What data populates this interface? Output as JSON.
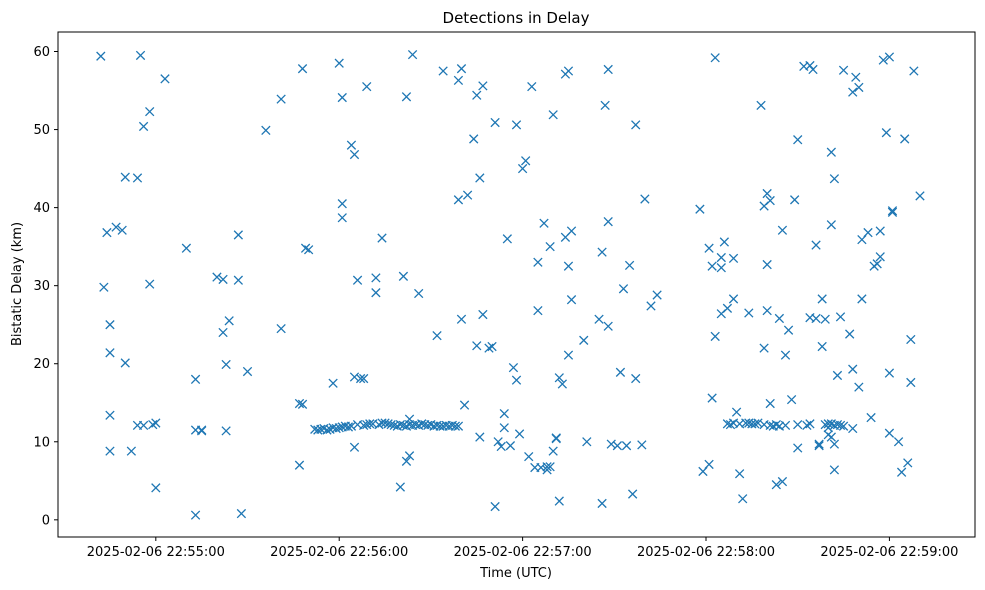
{
  "chart_data": {
    "type": "scatter",
    "title": "Detections in Delay",
    "xlabel": "Time (UTC)",
    "ylabel": "Bistatic Delay (km)",
    "xlim": [
      "2025-02-06 22:54:28",
      "2025-02-06 22:59:28"
    ],
    "ylim": [
      -2.2,
      62.5
    ],
    "x_ticks": [
      "2025-02-06 22:55:00",
      "2025-02-06 22:56:00",
      "2025-02-06 22:57:00",
      "2025-02-06 22:58:00",
      "2025-02-06 22:59:00"
    ],
    "y_ticks": [
      0,
      10,
      20,
      30,
      40,
      50,
      60
    ],
    "marker": "x",
    "color": "#1f77b4",
    "grid": false,
    "points": [
      [
        "2025-02-06 22:54:42",
        59.4
      ],
      [
        "2025-02-06 22:54:43",
        29.8
      ],
      [
        "2025-02-06 22:54:44",
        36.8
      ],
      [
        "2025-02-06 22:54:45",
        25.0
      ],
      [
        "2025-02-06 22:54:45",
        21.4
      ],
      [
        "2025-02-06 22:54:45",
        13.4
      ],
      [
        "2025-02-06 22:54:45",
        8.8
      ],
      [
        "2025-02-06 22:54:47",
        37.5
      ],
      [
        "2025-02-06 22:54:49",
        37.1
      ],
      [
        "2025-02-06 22:54:50",
        20.1
      ],
      [
        "2025-02-06 22:54:50",
        43.9
      ],
      [
        "2025-02-06 22:54:52",
        8.8
      ],
      [
        "2025-02-06 22:54:54",
        43.8
      ],
      [
        "2025-02-06 22:54:54",
        12.1
      ],
      [
        "2025-02-06 22:54:55",
        59.5
      ],
      [
        "2025-02-06 22:54:56",
        50.4
      ],
      [
        "2025-02-06 22:54:56",
        12.1
      ],
      [
        "2025-02-06 22:54:58",
        52.3
      ],
      [
        "2025-02-06 22:54:58",
        30.2
      ],
      [
        "2025-02-06 22:54:59",
        12.2
      ],
      [
        "2025-02-06 22:55:00",
        12.4
      ],
      [
        "2025-02-06 22:55:00",
        4.1
      ],
      [
        "2025-02-06 22:55:03",
        56.5
      ],
      [
        "2025-02-06 22:55:10",
        34.8
      ],
      [
        "2025-02-06 22:55:13",
        11.5
      ],
      [
        "2025-02-06 22:55:13",
        18.0
      ],
      [
        "2025-02-06 22:55:13",
        0.6
      ],
      [
        "2025-02-06 22:55:15",
        11.4
      ],
      [
        "2025-02-06 22:55:15",
        11.5
      ],
      [
        "2025-02-06 22:55:20",
        31.1
      ],
      [
        "2025-02-06 22:55:22",
        24.0
      ],
      [
        "2025-02-06 22:55:22",
        30.8
      ],
      [
        "2025-02-06 22:55:23",
        19.9
      ],
      [
        "2025-02-06 22:55:23",
        11.4
      ],
      [
        "2025-02-06 22:55:24",
        25.5
      ],
      [
        "2025-02-06 22:55:27",
        30.7
      ],
      [
        "2025-02-06 22:55:27",
        36.5
      ],
      [
        "2025-02-06 22:55:28",
        0.8
      ],
      [
        "2025-02-06 22:55:30",
        19.0
      ],
      [
        "2025-02-06 22:55:36",
        49.9
      ],
      [
        "2025-02-06 22:55:41",
        24.5
      ],
      [
        "2025-02-06 22:55:41",
        53.9
      ],
      [
        "2025-02-06 22:55:47",
        14.9
      ],
      [
        "2025-02-06 22:55:47",
        7.0
      ],
      [
        "2025-02-06 22:55:48",
        14.8
      ],
      [
        "2025-02-06 22:55:48",
        57.8
      ],
      [
        "2025-02-06 22:55:49",
        34.8
      ],
      [
        "2025-02-06 22:55:50",
        34.6
      ],
      [
        "2025-02-06 22:55:52",
        11.6
      ],
      [
        "2025-02-06 22:55:53",
        11.5
      ],
      [
        "2025-02-06 22:55:54",
        11.6
      ],
      [
        "2025-02-06 22:55:55",
        11.7
      ],
      [
        "2025-02-06 22:55:56",
        11.5
      ],
      [
        "2025-02-06 22:55:57",
        11.6
      ],
      [
        "2025-02-06 22:55:58",
        17.5
      ],
      [
        "2025-02-06 22:55:58",
        11.8
      ],
      [
        "2025-02-06 22:55:59",
        11.7
      ],
      [
        "2025-02-06 22:56:00",
        58.5
      ],
      [
        "2025-02-06 22:56:00",
        11.8
      ],
      [
        "2025-02-06 22:56:01",
        54.1
      ],
      [
        "2025-02-06 22:56:01",
        40.5
      ],
      [
        "2025-02-06 22:56:01",
        38.7
      ],
      [
        "2025-02-06 22:56:01",
        11.9
      ],
      [
        "2025-02-06 22:56:02",
        12.0
      ],
      [
        "2025-02-06 22:56:03",
        11.9
      ],
      [
        "2025-02-06 22:56:04",
        48.0
      ],
      [
        "2025-02-06 22:56:04",
        12.0
      ],
      [
        "2025-02-06 22:56:05",
        46.8
      ],
      [
        "2025-02-06 22:56:05",
        18.3
      ],
      [
        "2025-02-06 22:56:05",
        9.3
      ],
      [
        "2025-02-06 22:56:06",
        30.7
      ],
      [
        "2025-02-06 22:56:06",
        12.2
      ],
      [
        "2025-02-06 22:56:07",
        18.1
      ],
      [
        "2025-02-06 22:56:08",
        18.1
      ],
      [
        "2025-02-06 22:56:08",
        12.1
      ],
      [
        "2025-02-06 22:56:09",
        55.5
      ],
      [
        "2025-02-06 22:56:09",
        12.2
      ],
      [
        "2025-02-06 22:56:10",
        12.3
      ],
      [
        "2025-02-06 22:56:11",
        12.3
      ],
      [
        "2025-02-06 22:56:12",
        31.0
      ],
      [
        "2025-02-06 22:56:12",
        29.1
      ],
      [
        "2025-02-06 22:56:13",
        12.2
      ],
      [
        "2025-02-06 22:56:14",
        36.1
      ],
      [
        "2025-02-06 22:56:14",
        12.4
      ],
      [
        "2025-02-06 22:56:15",
        12.4
      ],
      [
        "2025-02-06 22:56:16",
        12.3
      ],
      [
        "2025-02-06 22:56:17",
        12.2
      ],
      [
        "2025-02-06 22:56:18",
        12.1
      ],
      [
        "2025-02-06 22:56:19",
        12.0
      ],
      [
        "2025-02-06 22:56:20",
        4.2
      ],
      [
        "2025-02-06 22:56:20",
        12.2
      ],
      [
        "2025-02-06 22:56:21",
        31.2
      ],
      [
        "2025-02-06 22:56:21",
        12.1
      ],
      [
        "2025-02-06 22:56:22",
        54.2
      ],
      [
        "2025-02-06 22:56:22",
        7.5
      ],
      [
        "2025-02-06 22:56:22",
        12.0
      ],
      [
        "2025-02-06 22:56:23",
        8.2
      ],
      [
        "2025-02-06 22:56:23",
        12.9
      ],
      [
        "2025-02-06 22:56:23",
        12.2
      ],
      [
        "2025-02-06 22:56:24",
        12.1
      ],
      [
        "2025-02-06 22:56:24",
        59.6
      ],
      [
        "2025-02-06 22:56:25",
        12.2
      ],
      [
        "2025-02-06 22:56:26",
        29.0
      ],
      [
        "2025-02-06 22:56:26",
        12.1
      ],
      [
        "2025-02-06 22:56:27",
        12.3
      ],
      [
        "2025-02-06 22:56:28",
        12.2
      ],
      [
        "2025-02-06 22:56:29",
        12.1
      ],
      [
        "2025-02-06 22:56:30",
        12.2
      ],
      [
        "2025-02-06 22:56:31",
        12.0
      ],
      [
        "2025-02-06 22:56:32",
        23.6
      ],
      [
        "2025-02-06 22:56:32",
        12.1
      ],
      [
        "2025-02-06 22:56:33",
        12.0
      ],
      [
        "2025-02-06 22:56:34",
        57.5
      ],
      [
        "2025-02-06 22:56:34",
        12.0
      ],
      [
        "2025-02-06 22:56:35",
        12.1
      ],
      [
        "2025-02-06 22:56:36",
        12.0
      ],
      [
        "2025-02-06 22:56:37",
        12.1
      ],
      [
        "2025-02-06 22:56:38",
        12.0
      ],
      [
        "2025-02-06 22:56:39",
        56.3
      ],
      [
        "2025-02-06 22:56:39",
        41.0
      ],
      [
        "2025-02-06 22:56:39",
        12.0
      ],
      [
        "2025-02-06 22:56:40",
        57.8
      ],
      [
        "2025-02-06 22:56:40",
        25.7
      ],
      [
        "2025-02-06 22:56:41",
        14.7
      ],
      [
        "2025-02-06 22:56:42",
        41.6
      ],
      [
        "2025-02-06 22:56:44",
        48.8
      ],
      [
        "2025-02-06 22:56:45",
        54.4
      ],
      [
        "2025-02-06 22:56:45",
        22.3
      ],
      [
        "2025-02-06 22:56:46",
        43.8
      ],
      [
        "2025-02-06 22:56:46",
        10.6
      ],
      [
        "2025-02-06 22:56:47",
        55.6
      ],
      [
        "2025-02-06 22:56:47",
        26.3
      ],
      [
        "2025-02-06 22:56:49",
        22.0
      ],
      [
        "2025-02-06 22:56:50",
        22.2
      ],
      [
        "2025-02-06 22:56:51",
        50.9
      ],
      [
        "2025-02-06 22:56:51",
        1.7
      ],
      [
        "2025-02-06 22:56:52",
        10.0
      ],
      [
        "2025-02-06 22:56:53",
        9.4
      ],
      [
        "2025-02-06 22:56:54",
        11.8
      ],
      [
        "2025-02-06 22:56:54",
        13.6
      ],
      [
        "2025-02-06 22:56:55",
        36.0
      ],
      [
        "2025-02-06 22:56:56",
        9.5
      ],
      [
        "2025-02-06 22:56:57",
        19.5
      ],
      [
        "2025-02-06 22:56:58",
        17.9
      ],
      [
        "2025-02-06 22:56:58",
        50.6
      ],
      [
        "2025-02-06 22:56:59",
        11.0
      ],
      [
        "2025-02-06 22:57:00",
        45.0
      ],
      [
        "2025-02-06 22:57:01",
        46.0
      ],
      [
        "2025-02-06 22:57:02",
        8.1
      ],
      [
        "2025-02-06 22:57:03",
        55.5
      ],
      [
        "2025-02-06 22:57:04",
        6.7
      ],
      [
        "2025-02-06 22:57:05",
        33.0
      ],
      [
        "2025-02-06 22:57:05",
        26.8
      ],
      [
        "2025-02-06 22:57:06",
        6.7
      ],
      [
        "2025-02-06 22:57:07",
        38.0
      ],
      [
        "2025-02-06 22:57:08",
        6.8
      ],
      [
        "2025-02-06 22:57:08",
        6.4
      ],
      [
        "2025-02-06 22:57:09",
        6.8
      ],
      [
        "2025-02-06 22:57:09",
        35.0
      ],
      [
        "2025-02-06 22:57:10",
        8.8
      ],
      [
        "2025-02-06 22:57:10",
        51.9
      ],
      [
        "2025-02-06 22:57:11",
        10.5
      ],
      [
        "2025-02-06 22:57:11",
        10.4
      ],
      [
        "2025-02-06 22:57:12",
        18.2
      ],
      [
        "2025-02-06 22:57:12",
        2.4
      ],
      [
        "2025-02-06 22:57:13",
        17.4
      ],
      [
        "2025-02-06 22:57:14",
        36.2
      ],
      [
        "2025-02-06 22:57:14",
        57.1
      ],
      [
        "2025-02-06 22:57:15",
        21.1
      ],
      [
        "2025-02-06 22:57:15",
        57.5
      ],
      [
        "2025-02-06 22:57:15",
        32.5
      ],
      [
        "2025-02-06 22:57:16",
        28.2
      ],
      [
        "2025-02-06 22:57:16",
        37.0
      ],
      [
        "2025-02-06 22:57:20",
        23.0
      ],
      [
        "2025-02-06 22:57:21",
        10.0
      ],
      [
        "2025-02-06 22:57:25",
        25.7
      ],
      [
        "2025-02-06 22:57:26",
        34.3
      ],
      [
        "2025-02-06 22:57:26",
        2.1
      ],
      [
        "2025-02-06 22:57:27",
        53.1
      ],
      [
        "2025-02-06 22:57:28",
        57.7
      ],
      [
        "2025-02-06 22:57:28",
        38.2
      ],
      [
        "2025-02-06 22:57:28",
        24.8
      ],
      [
        "2025-02-06 22:57:29",
        9.7
      ],
      [
        "2025-02-06 22:57:31",
        9.5
      ],
      [
        "2025-02-06 22:57:32",
        18.9
      ],
      [
        "2025-02-06 22:57:33",
        29.6
      ],
      [
        "2025-02-06 22:57:34",
        9.5
      ],
      [
        "2025-02-06 22:57:35",
        32.6
      ],
      [
        "2025-02-06 22:57:36",
        3.3
      ],
      [
        "2025-02-06 22:57:37",
        50.6
      ],
      [
        "2025-02-06 22:57:37",
        18.1
      ],
      [
        "2025-02-06 22:57:39",
        9.6
      ],
      [
        "2025-02-06 22:57:40",
        41.1
      ],
      [
        "2025-02-06 22:57:42",
        27.4
      ],
      [
        "2025-02-06 22:57:44",
        28.8
      ],
      [
        "2025-02-06 22:57:58",
        39.8
      ],
      [
        "2025-02-06 22:57:59",
        6.2
      ],
      [
        "2025-02-06 22:58:01",
        7.1
      ],
      [
        "2025-02-06 22:58:01",
        34.8
      ],
      [
        "2025-02-06 22:58:02",
        32.5
      ],
      [
        "2025-02-06 22:58:02",
        15.6
      ],
      [
        "2025-02-06 22:58:03",
        23.5
      ],
      [
        "2025-02-06 22:58:03",
        59.2
      ],
      [
        "2025-02-06 22:58:05",
        32.3
      ],
      [
        "2025-02-06 22:58:05",
        33.6
      ],
      [
        "2025-02-06 22:58:05",
        26.4
      ],
      [
        "2025-02-06 22:58:06",
        35.6
      ],
      [
        "2025-02-06 22:58:07",
        12.3
      ],
      [
        "2025-02-06 22:58:07",
        27.1
      ],
      [
        "2025-02-06 22:58:08",
        12.2
      ],
      [
        "2025-02-06 22:58:09",
        28.3
      ],
      [
        "2025-02-06 22:58:09",
        12.4
      ],
      [
        "2025-02-06 22:58:09",
        33.5
      ],
      [
        "2025-02-06 22:58:10",
        13.8
      ],
      [
        "2025-02-06 22:58:11",
        12.3
      ],
      [
        "2025-02-06 22:58:11",
        5.9
      ],
      [
        "2025-02-06 22:58:12",
        2.7
      ],
      [
        "2025-02-06 22:58:13",
        12.4
      ],
      [
        "2025-02-06 22:58:14",
        12.4
      ],
      [
        "2025-02-06 22:58:14",
        26.5
      ],
      [
        "2025-02-06 22:58:15",
        12.3
      ],
      [
        "2025-02-06 22:58:16",
        12.3
      ],
      [
        "2025-02-06 22:58:17",
        12.4
      ],
      [
        "2025-02-06 22:58:18",
        53.1
      ],
      [
        "2025-02-06 22:58:19",
        40.2
      ],
      [
        "2025-02-06 22:58:19",
        22.0
      ],
      [
        "2025-02-06 22:58:19",
        12.2
      ],
      [
        "2025-02-06 22:58:20",
        41.8
      ],
      [
        "2025-02-06 22:58:20",
        26.8
      ],
      [
        "2025-02-06 22:58:20",
        32.7
      ],
      [
        "2025-02-06 22:58:21",
        40.9
      ],
      [
        "2025-02-06 22:58:21",
        14.9
      ],
      [
        "2025-02-06 22:58:21",
        12.1
      ],
      [
        "2025-02-06 22:58:22",
        12.0
      ],
      [
        "2025-02-06 22:58:23",
        4.5
      ],
      [
        "2025-02-06 22:58:23",
        12.2
      ],
      [
        "2025-02-06 22:58:24",
        25.8
      ],
      [
        "2025-02-06 22:58:24",
        12.0
      ],
      [
        "2025-02-06 22:58:25",
        4.9
      ],
      [
        "2025-02-06 22:58:25",
        37.1
      ],
      [
        "2025-02-06 22:58:26",
        21.1
      ],
      [
        "2025-02-06 22:58:26",
        12.1
      ],
      [
        "2025-02-06 22:58:27",
        24.3
      ],
      [
        "2025-02-06 22:58:28",
        15.4
      ],
      [
        "2025-02-06 22:58:29",
        41.0
      ],
      [
        "2025-02-06 22:58:30",
        48.7
      ],
      [
        "2025-02-06 22:58:30",
        12.2
      ],
      [
        "2025-02-06 22:58:30",
        9.2
      ],
      [
        "2025-02-06 22:58:32",
        58.1
      ],
      [
        "2025-02-06 22:58:33",
        12.1
      ],
      [
        "2025-02-06 22:58:34",
        58.2
      ],
      [
        "2025-02-06 22:58:34",
        12.3
      ],
      [
        "2025-02-06 22:58:34",
        25.9
      ],
      [
        "2025-02-06 22:58:35",
        57.7
      ],
      [
        "2025-02-06 22:58:36",
        35.2
      ],
      [
        "2025-02-06 22:58:36",
        25.8
      ],
      [
        "2025-02-06 22:58:37",
        9.5
      ],
      [
        "2025-02-06 22:58:37",
        9.7
      ],
      [
        "2025-02-06 22:58:38",
        28.3
      ],
      [
        "2025-02-06 22:58:38",
        22.2
      ],
      [
        "2025-02-06 22:58:39",
        25.7
      ],
      [
        "2025-02-06 22:58:39",
        12.2
      ],
      [
        "2025-02-06 22:58:40",
        11.8
      ],
      [
        "2025-02-06 22:58:40",
        10.9
      ],
      [
        "2025-02-06 22:58:40",
        12.3
      ],
      [
        "2025-02-06 22:58:41",
        47.1
      ],
      [
        "2025-02-06 22:58:41",
        37.8
      ],
      [
        "2025-02-06 22:58:41",
        12.3
      ],
      [
        "2025-02-06 22:58:41",
        10.6
      ],
      [
        "2025-02-06 22:58:42",
        43.7
      ],
      [
        "2025-02-06 22:58:42",
        9.7
      ],
      [
        "2025-02-06 22:58:42",
        6.4
      ],
      [
        "2025-02-06 22:58:42",
        12.1
      ],
      [
        "2025-02-06 22:58:43",
        12.2
      ],
      [
        "2025-02-06 22:58:43",
        18.5
      ],
      [
        "2025-02-06 22:58:44",
        12.1
      ],
      [
        "2025-02-06 22:58:44",
        26.0
      ],
      [
        "2025-02-06 22:58:45",
        12.0
      ],
      [
        "2025-02-06 22:58:45",
        57.6
      ],
      [
        "2025-02-06 22:58:47",
        23.8
      ],
      [
        "2025-02-06 22:58:48",
        19.3
      ],
      [
        "2025-02-06 22:58:48",
        11.7
      ],
      [
        "2025-02-06 22:58:48",
        54.8
      ],
      [
        "2025-02-06 22:58:49",
        56.7
      ],
      [
        "2025-02-06 22:58:50",
        55.4
      ],
      [
        "2025-02-06 22:58:50",
        17.0
      ],
      [
        "2025-02-06 22:58:51",
        35.9
      ],
      [
        "2025-02-06 22:58:51",
        28.3
      ],
      [
        "2025-02-06 22:58:53",
        36.8
      ],
      [
        "2025-02-06 22:58:54",
        13.1
      ],
      [
        "2025-02-06 22:58:55",
        32.5
      ],
      [
        "2025-02-06 22:58:56",
        32.8
      ],
      [
        "2025-02-06 22:58:57",
        33.7
      ],
      [
        "2025-02-06 22:58:57",
        37.0
      ],
      [
        "2025-02-06 22:58:58",
        58.9
      ],
      [
        "2025-02-06 22:58:59",
        49.6
      ],
      [
        "2025-02-06 22:59:00",
        59.3
      ],
      [
        "2025-02-06 22:59:00",
        18.8
      ],
      [
        "2025-02-06 22:59:00",
        11.1
      ],
      [
        "2025-02-06 22:59:01",
        39.4
      ],
      [
        "2025-02-06 22:59:01",
        39.6
      ],
      [
        "2025-02-06 22:59:03",
        10.0
      ],
      [
        "2025-02-06 22:59:04",
        6.1
      ],
      [
        "2025-02-06 22:59:05",
        48.8
      ],
      [
        "2025-02-06 22:59:06",
        7.3
      ],
      [
        "2025-02-06 22:59:07",
        17.6
      ],
      [
        "2025-02-06 22:59:07",
        23.1
      ],
      [
        "2025-02-06 22:59:08",
        57.5
      ],
      [
        "2025-02-06 22:59:10",
        41.5
      ]
    ]
  }
}
